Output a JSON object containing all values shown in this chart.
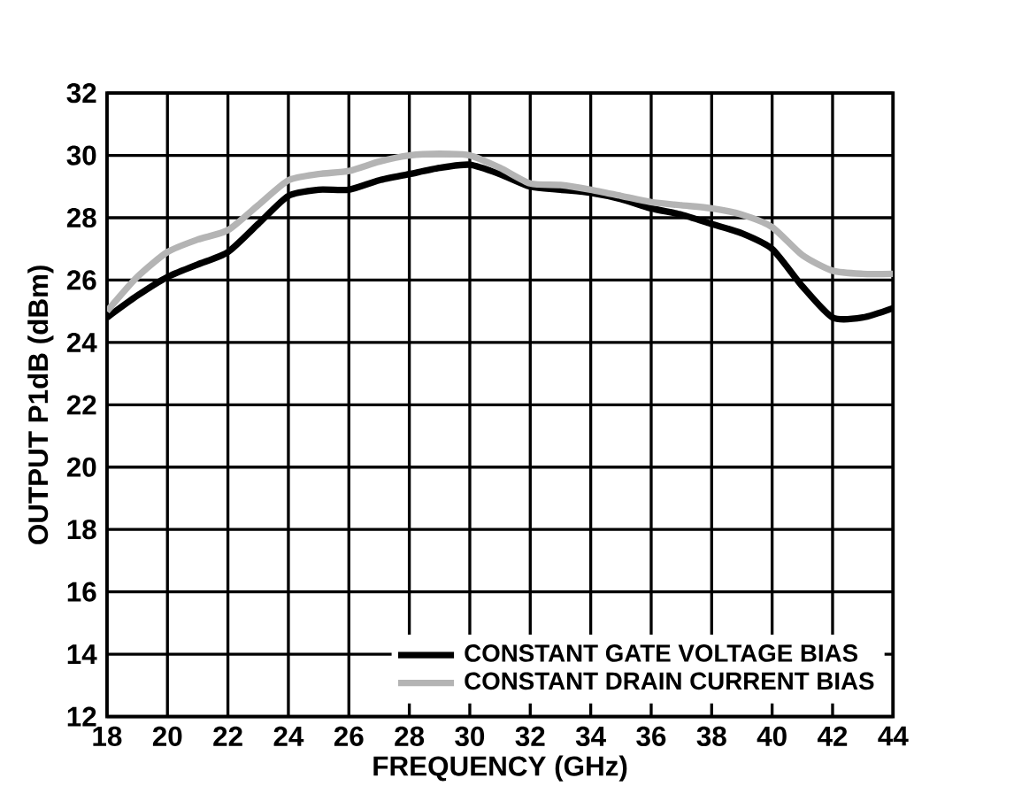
{
  "chart_data": {
    "type": "line",
    "xlabel": "FREQUENCY (GHz)",
    "ylabel": "OUTPUT P1dB (dBm)",
    "x": [
      18,
      19,
      20,
      21,
      22,
      23,
      24,
      25,
      26,
      27,
      28,
      29,
      30,
      31,
      32,
      33,
      34,
      35,
      36,
      37,
      38,
      39,
      40,
      41,
      42,
      43,
      44
    ],
    "series": [
      {
        "name": "CONSTANT GATE VOLTAGE BIAS",
        "color": "#000000",
        "values": [
          24.8,
          25.5,
          26.1,
          26.5,
          26.9,
          27.8,
          28.7,
          28.9,
          28.9,
          29.2,
          29.4,
          29.6,
          29.7,
          29.4,
          29.0,
          28.9,
          28.8,
          28.6,
          28.3,
          28.1,
          27.8,
          27.5,
          27.0,
          25.8,
          24.8,
          24.8,
          25.1
        ]
      },
      {
        "name": "CONSTANT DRAIN CURRENT BIAS",
        "color": "#b4b4b4",
        "values": [
          25.0,
          26.1,
          26.9,
          27.3,
          27.6,
          28.4,
          29.2,
          29.4,
          29.5,
          29.8,
          30.0,
          30.05,
          30.0,
          29.6,
          29.1,
          29.05,
          28.9,
          28.7,
          28.5,
          28.4,
          28.3,
          28.1,
          27.7,
          26.8,
          26.3,
          26.2,
          26.2
        ]
      }
    ],
    "xlim": [
      18,
      44
    ],
    "ylim": [
      12,
      32
    ],
    "xticks": [
      18,
      20,
      22,
      24,
      26,
      28,
      30,
      32,
      34,
      36,
      38,
      40,
      42,
      44
    ],
    "yticks": [
      12,
      14,
      16,
      18,
      20,
      22,
      24,
      26,
      28,
      30,
      32
    ],
    "grid": true,
    "legend": "bottom right",
    "marker": "none",
    "line_style": "solid"
  }
}
